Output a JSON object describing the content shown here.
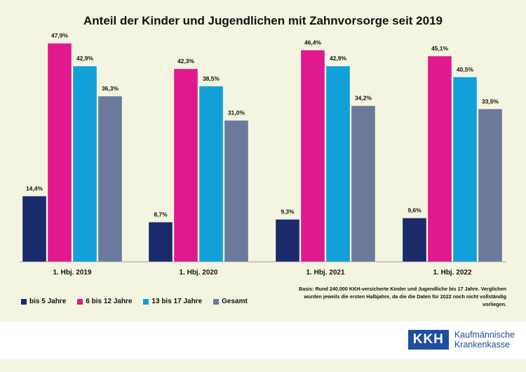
{
  "chart_data": {
    "type": "bar",
    "title": "Anteil der Kinder und Jugendlichen mit Zahnvorsorge seit 2019",
    "categories": [
      "1. Hbj. 2019",
      "1. Hbj. 2020",
      "1. Hbj. 2021",
      "1. Hbj. 2022"
    ],
    "series": [
      {
        "name": "bis 5 Jahre",
        "color": "#1b2a6b",
        "values": [
          14.4,
          8.7,
          9.3,
          9.6
        ],
        "labels": [
          "14,4%",
          "8,7%",
          "9,3%",
          "9,6%"
        ]
      },
      {
        "name": "6 bis 12 Jahre",
        "color": "#e0198c",
        "values": [
          47.9,
          42.3,
          46.4,
          45.1
        ],
        "labels": [
          "47,9%",
          "42,3%",
          "46,4%",
          "45,1%"
        ]
      },
      {
        "name": "13 bis 17 Jahre",
        "color": "#13a0d8",
        "values": [
          42.9,
          38.5,
          42.9,
          40.5
        ],
        "labels": [
          "42,9%",
          "38,5%",
          "42,9%",
          "40,5%"
        ]
      },
      {
        "name": "Gesamt",
        "color": "#6b7a9b",
        "values": [
          36.3,
          31.0,
          34.2,
          33.5
        ],
        "labels": [
          "36,3%",
          "31,0%",
          "34,2%",
          "33,5%"
        ]
      }
    ],
    "ylim": [
      0,
      50
    ],
    "xlabel": "",
    "ylabel": ""
  },
  "footnote": "Basis: Rund 240.000 KKH-versicherte Kinder und Jugendliche bis 17 Jahre. Verglichen wurden jeweils die ersten Halbjahre, da die die Daten für 2022 noch nicht vollständig vorliegen.",
  "logo": {
    "abbr": "KKH",
    "line1": "Kaufmännische",
    "line2": "Krankenkasse"
  }
}
